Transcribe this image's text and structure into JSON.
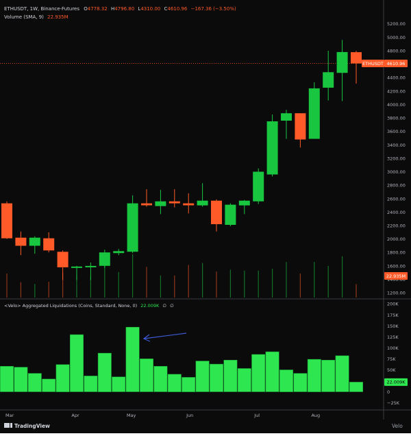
{
  "colors": {
    "background": "#0b0b0b",
    "up": "#19c640",
    "down": "#ff5a27",
    "liq_bar": "#2ee64f",
    "text": "#d1d4dc",
    "axis_text": "#b2b5be",
    "price_tag": "#ff5a27",
    "volume_tag": "#ff5a27",
    "liq_tag": "#2ee64f",
    "arrow": "#3d5bd9",
    "price_line": "#ff5a27"
  },
  "header": {
    "symbol": "ETHUSDT, 1W, Binance-Futures",
    "o_label": "O",
    "o_value": "4778.32",
    "h_label": "H",
    "h_value": "4796.80",
    "l_label": "L",
    "l_value": "4310.00",
    "c_label": "C",
    "c_value": "4610.96",
    "change": "−167.36 (−3.50%)",
    "volume_label": "Volume (SMA, 9)",
    "volume_value": "22.935M"
  },
  "indicator": {
    "label": "<Velo> Aggregated Liquidations (Coins, Standard, None, 0)",
    "value": "22.009K",
    "symbol1": "∅",
    "symbol2": "∅"
  },
  "tags": {
    "ticker": "ETHUSDT",
    "last_price": "4610.96",
    "volume": "22.935M",
    "liquidations": "22.009K"
  },
  "footer": {
    "brand": "TradingView",
    "watermark": "Velo"
  },
  "chart_data": [
    {
      "type": "candlestick",
      "title": "ETHUSDT, 1W, Binance-Futures",
      "ylim": [
        1150,
        5350
      ],
      "y_ticks": [
        1200,
        1400,
        1600,
        1800,
        2000,
        2200,
        2400,
        2600,
        2800,
        3000,
        3200,
        3400,
        3600,
        3800,
        4000,
        4200,
        4400,
        4600,
        4800,
        5000,
        5200
      ],
      "y_tick_labels": [
        "1200.00",
        "1400.00",
        "1600.00",
        "1800.00",
        "2000.00",
        "2200.00",
        "2400.00",
        "2600.00",
        "2800.00",
        "3000.00",
        "3200.00",
        "3400.00",
        "3600.00",
        "3800.00",
        "4000.00",
        "4200.00",
        "4400.00",
        "4600.00",
        "4800.00",
        "5000.00",
        "5200.00"
      ],
      "x_tick_labels": [
        "Mar",
        "Apr",
        "May",
        "Jun",
        "Jul",
        "Aug"
      ],
      "candles": [
        {
          "o": 2530,
          "h": 2560,
          "l": 2000,
          "c": 2010
        },
        {
          "o": 2020,
          "h": 2110,
          "l": 1760,
          "c": 1900
        },
        {
          "o": 1900,
          "h": 2040,
          "l": 1780,
          "c": 2020
        },
        {
          "o": 2010,
          "h": 2100,
          "l": 1800,
          "c": 1830
        },
        {
          "o": 1810,
          "h": 1830,
          "l": 1390,
          "c": 1580
        },
        {
          "o": 1570,
          "h": 1600,
          "l": 1390,
          "c": 1590
        },
        {
          "o": 1580,
          "h": 1650,
          "l": 1390,
          "c": 1600
        },
        {
          "o": 1600,
          "h": 1840,
          "l": 1570,
          "c": 1800
        },
        {
          "o": 1790,
          "h": 1850,
          "l": 1760,
          "c": 1820
        },
        {
          "o": 1810,
          "h": 2650,
          "l": 1790,
          "c": 2530
        },
        {
          "o": 2530,
          "h": 2740,
          "l": 2480,
          "c": 2500
        },
        {
          "o": 2490,
          "h": 2730,
          "l": 2370,
          "c": 2560
        },
        {
          "o": 2560,
          "h": 2740,
          "l": 2470,
          "c": 2530
        },
        {
          "o": 2530,
          "h": 2680,
          "l": 2380,
          "c": 2500
        },
        {
          "o": 2500,
          "h": 2830,
          "l": 2480,
          "c": 2570
        },
        {
          "o": 2570,
          "h": 2590,
          "l": 2110,
          "c": 2220
        },
        {
          "o": 2210,
          "h": 2530,
          "l": 2190,
          "c": 2510
        },
        {
          "o": 2500,
          "h": 2580,
          "l": 2370,
          "c": 2570
        },
        {
          "o": 2560,
          "h": 3050,
          "l": 2520,
          "c": 3000
        },
        {
          "o": 2960,
          "h": 3850,
          "l": 2930,
          "c": 3750
        },
        {
          "o": 3760,
          "h": 3920,
          "l": 3490,
          "c": 3870
        },
        {
          "o": 3870,
          "h": 3870,
          "l": 3360,
          "c": 3480
        },
        {
          "o": 3490,
          "h": 4330,
          "l": 3490,
          "c": 4240
        },
        {
          "o": 4250,
          "h": 4800,
          "l": 4060,
          "c": 4480
        },
        {
          "o": 4470,
          "h": 4960,
          "l": 4050,
          "c": 4780
        },
        {
          "o": 4778.32,
          "h": 4796.8,
          "l": 4310,
          "c": 4610.96
        }
      ]
    },
    {
      "type": "bar",
      "title": "Volume (SMA, 9)",
      "values_relative": [
        0.5,
        0.32,
        0.28,
        0.33,
        0.52,
        0.46,
        0.44,
        0.66,
        0.53,
        0.9,
        0.64,
        0.46,
        0.46,
        0.68,
        0.72,
        0.54,
        0.58,
        0.56,
        0.56,
        0.6,
        0.74,
        0.5,
        0.74,
        0.66,
        0.86,
        0.28
      ]
    },
    {
      "type": "bar",
      "title": "<Velo> Aggregated Liquidations (Coins, Standard, None, 0)",
      "ylim": [
        -35000,
        205000
      ],
      "y_ticks": [
        200000,
        175000,
        150000,
        125000,
        100000,
        75000,
        50000,
        25000,
        0,
        -25000
      ],
      "y_tick_labels": [
        "200K",
        "175K",
        "150K",
        "125K",
        "100K",
        "75K",
        "50K",
        "25K",
        "0",
        "−25K"
      ],
      "values": [
        58000,
        56000,
        42000,
        29000,
        62000,
        130000,
        36000,
        88000,
        34000,
        147000,
        75000,
        58000,
        40000,
        33000,
        70000,
        63000,
        72000,
        53000,
        85000,
        91000,
        50000,
        42000,
        74000,
        72000,
        82000,
        22009
      ]
    }
  ]
}
